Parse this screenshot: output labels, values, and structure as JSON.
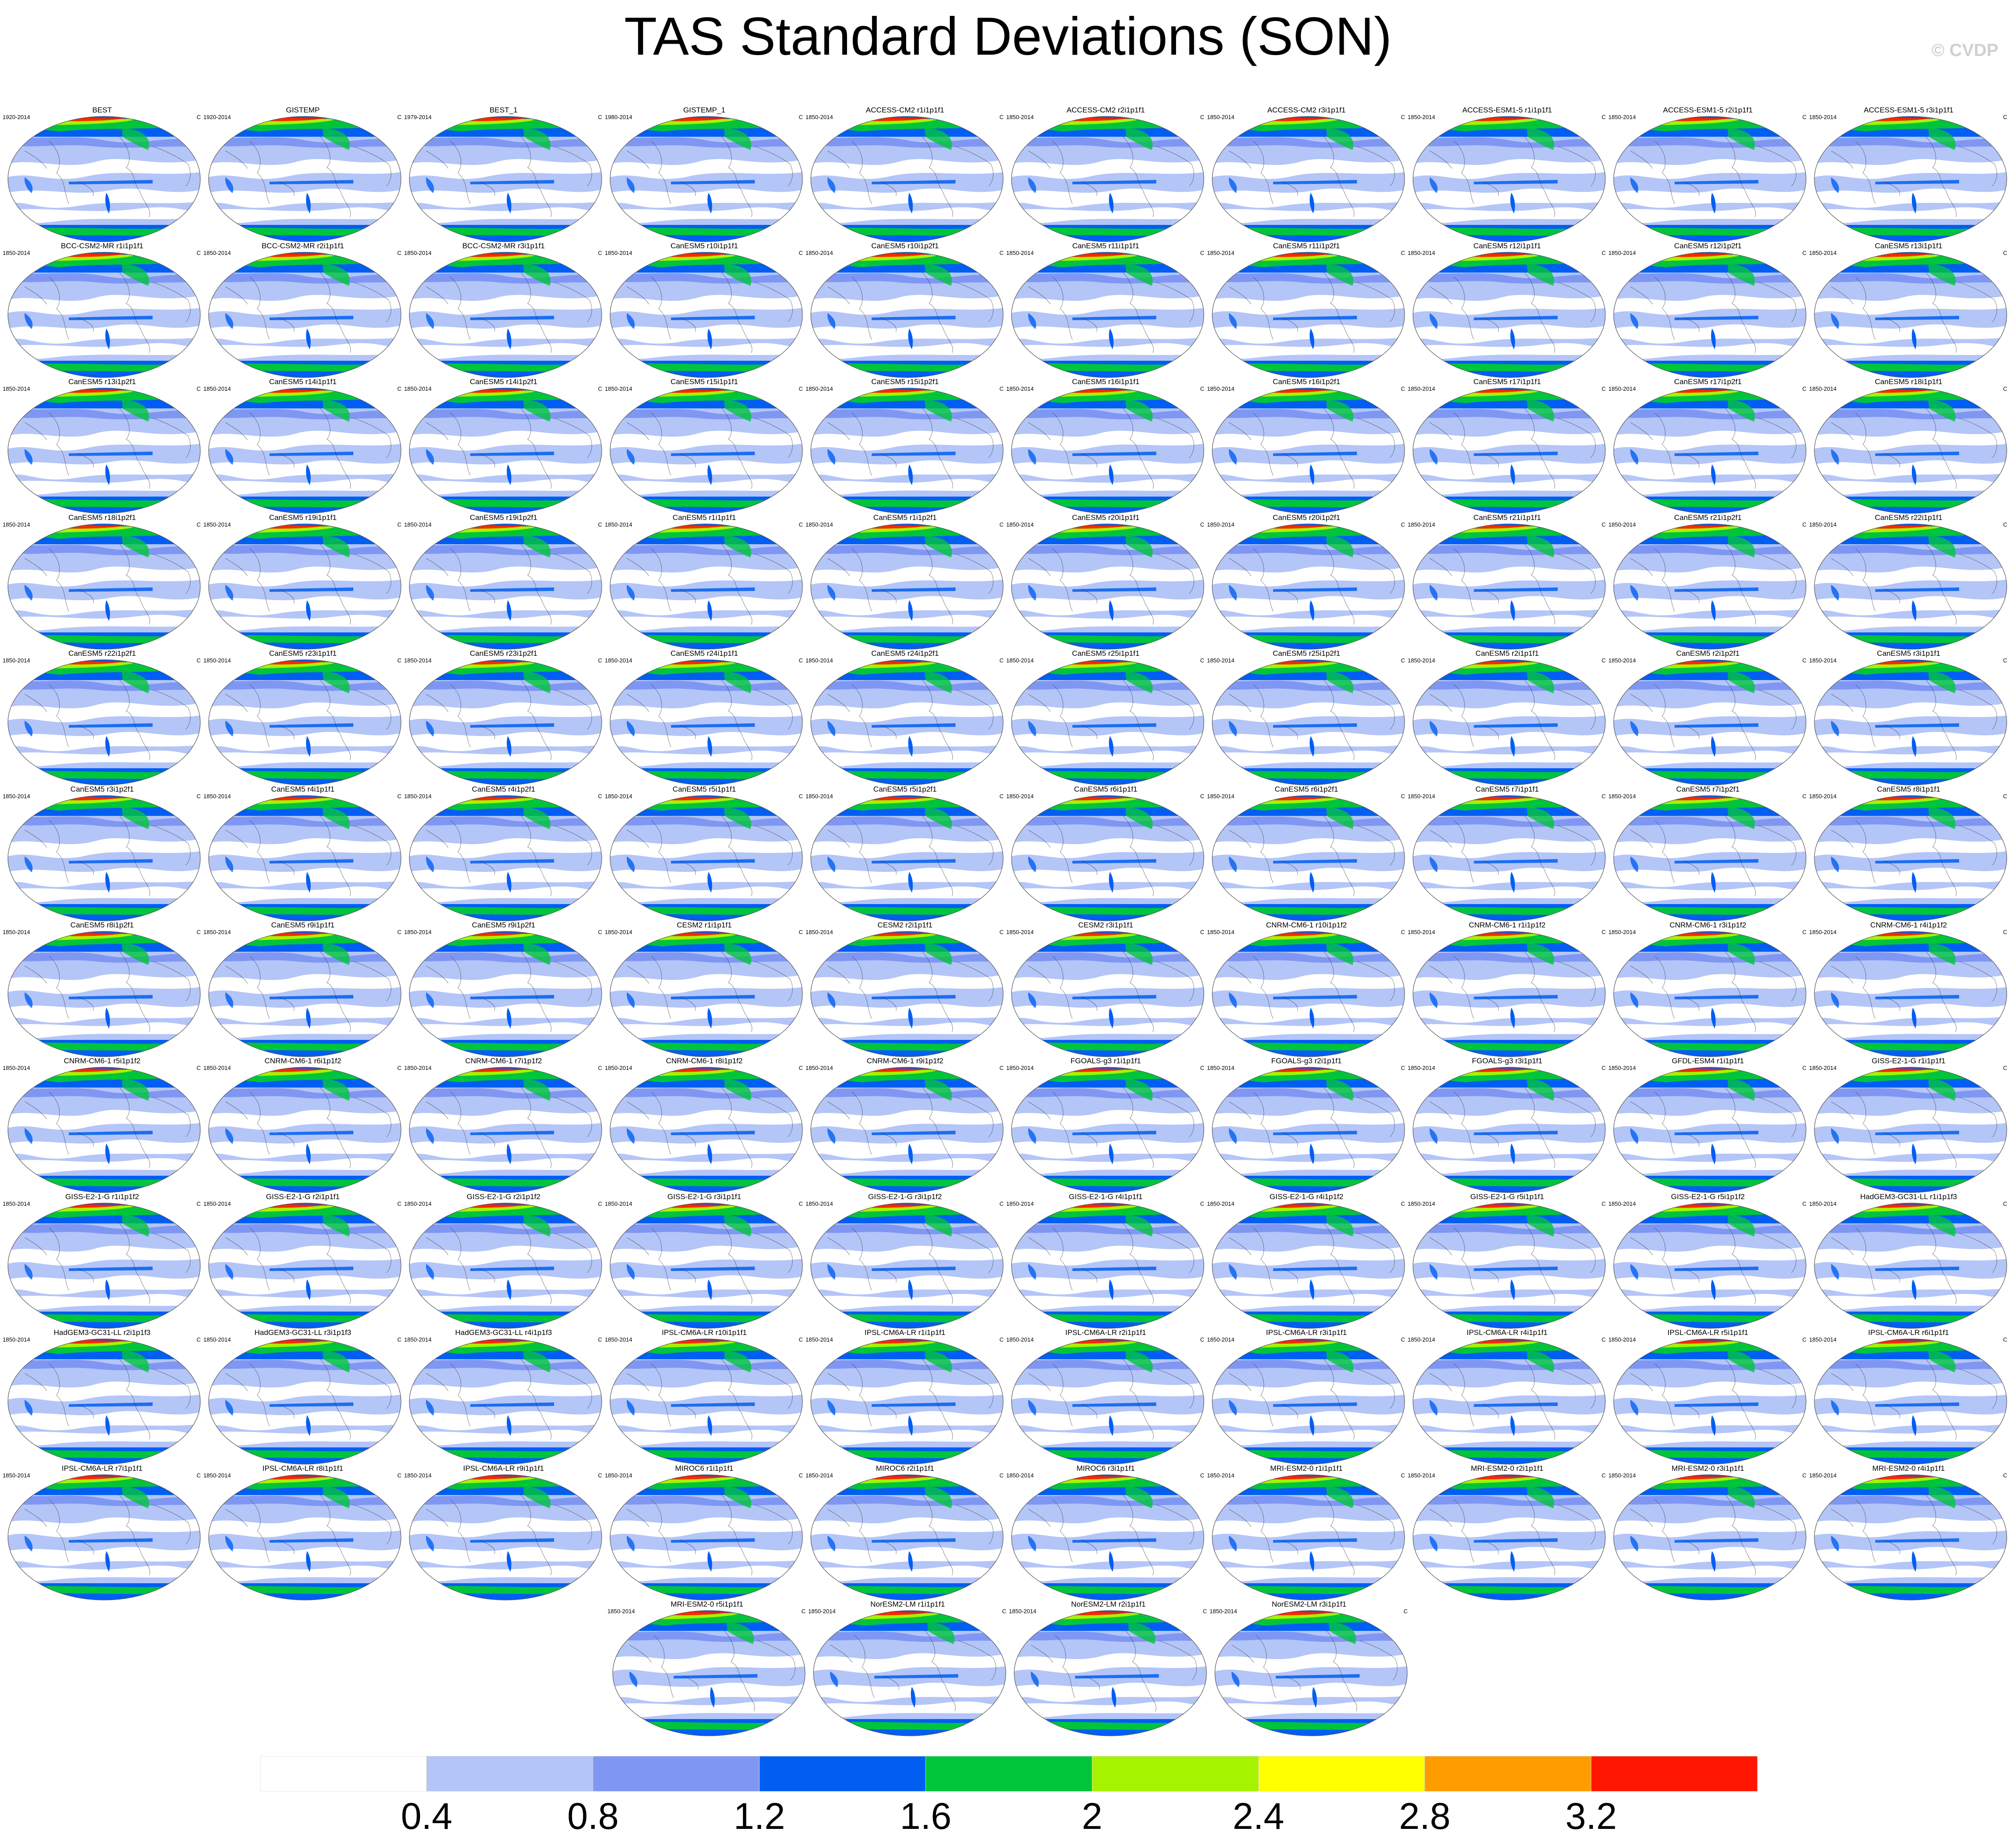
{
  "title": "TAS Standard Deviations (SON)",
  "watermark": "© CVDP",
  "unit_label": "C",
  "chart_data": {
    "type": "heatmap",
    "title": "TAS Standard Deviations (SON)",
    "note": "Grid of global surface air temperature standard-deviation maps, one per dataset/model member",
    "colorbar": {
      "levels": [
        0.4,
        0.8,
        1.2,
        1.6,
        2,
        2.4,
        2.8,
        3.2
      ],
      "tick_labels": [
        "0.4",
        "0.8",
        "1.2",
        "1.6",
        "2",
        "2.4",
        "2.8",
        "3.2"
      ],
      "colors": [
        "#ffffff",
        "#b4c5f7",
        "#7f97f3",
        "#005ef2",
        "#00c53b",
        "#a6f300",
        "#ffff00",
        "#ff9c00",
        "#ff1600"
      ]
    },
    "panels": [
      {
        "name": "BEST",
        "years": "1920-2014"
      },
      {
        "name": "GISTEMP",
        "years": "1920-2014"
      },
      {
        "name": "BEST_1",
        "years": "1979-2014"
      },
      {
        "name": "GISTEMP_1",
        "years": "1980-2014"
      },
      {
        "name": "ACCESS-CM2 r1i1p1f1",
        "years": "1850-2014"
      },
      {
        "name": "ACCESS-CM2 r2i1p1f1",
        "years": "1850-2014"
      },
      {
        "name": "ACCESS-CM2 r3i1p1f1",
        "years": "1850-2014"
      },
      {
        "name": "ACCESS-ESM1-5 r1i1p1f1",
        "years": "1850-2014"
      },
      {
        "name": "ACCESS-ESM1-5 r2i1p1f1",
        "years": "1850-2014"
      },
      {
        "name": "ACCESS-ESM1-5 r3i1p1f1",
        "years": "1850-2014"
      },
      {
        "name": "BCC-CSM2-MR r1i1p1f1",
        "years": "1850-2014"
      },
      {
        "name": "BCC-CSM2-MR r2i1p1f1",
        "years": "1850-2014"
      },
      {
        "name": "BCC-CSM2-MR r3i1p1f1",
        "years": "1850-2014"
      },
      {
        "name": "CanESM5 r10i1p1f1",
        "years": "1850-2014"
      },
      {
        "name": "CanESM5 r10i1p2f1",
        "years": "1850-2014"
      },
      {
        "name": "CanESM5 r11i1p1f1",
        "years": "1850-2014"
      },
      {
        "name": "CanESM5 r11i1p2f1",
        "years": "1850-2014"
      },
      {
        "name": "CanESM5 r12i1p1f1",
        "years": "1850-2014"
      },
      {
        "name": "CanESM5 r12i1p2f1",
        "years": "1850-2014"
      },
      {
        "name": "CanESM5 r13i1p1f1",
        "years": "1850-2014"
      },
      {
        "name": "CanESM5 r13i1p2f1",
        "years": "1850-2014"
      },
      {
        "name": "CanESM5 r14i1p1f1",
        "years": "1850-2014"
      },
      {
        "name": "CanESM5 r14i1p2f1",
        "years": "1850-2014"
      },
      {
        "name": "CanESM5 r15i1p1f1",
        "years": "1850-2014"
      },
      {
        "name": "CanESM5 r15i1p2f1",
        "years": "1850-2014"
      },
      {
        "name": "CanESM5 r16i1p1f1",
        "years": "1850-2014"
      },
      {
        "name": "CanESM5 r16i1p2f1",
        "years": "1850-2014"
      },
      {
        "name": "CanESM5 r17i1p1f1",
        "years": "1850-2014"
      },
      {
        "name": "CanESM5 r17i1p2f1",
        "years": "1850-2014"
      },
      {
        "name": "CanESM5 r18i1p1f1",
        "years": "1850-2014"
      },
      {
        "name": "CanESM5 r18i1p2f1",
        "years": "1850-2014"
      },
      {
        "name": "CanESM5 r19i1p1f1",
        "years": "1850-2014"
      },
      {
        "name": "CanESM5 r19i1p2f1",
        "years": "1850-2014"
      },
      {
        "name": "CanESM5 r1i1p1f1",
        "years": "1850-2014"
      },
      {
        "name": "CanESM5 r1i1p2f1",
        "years": "1850-2014"
      },
      {
        "name": "CanESM5 r20i1p1f1",
        "years": "1850-2014"
      },
      {
        "name": "CanESM5 r20i1p2f1",
        "years": "1850-2014"
      },
      {
        "name": "CanESM5 r21i1p1f1",
        "years": "1850-2014"
      },
      {
        "name": "CanESM5 r21i1p2f1",
        "years": "1850-2014"
      },
      {
        "name": "CanESM5 r22i1p1f1",
        "years": "1850-2014"
      },
      {
        "name": "CanESM5 r22i1p2f1",
        "years": "1850-2014"
      },
      {
        "name": "CanESM5 r23i1p1f1",
        "years": "1850-2014"
      },
      {
        "name": "CanESM5 r23i1p2f1",
        "years": "1850-2014"
      },
      {
        "name": "CanESM5 r24i1p1f1",
        "years": "1850-2014"
      },
      {
        "name": "CanESM5 r24i1p2f1",
        "years": "1850-2014"
      },
      {
        "name": "CanESM5 r25i1p1f1",
        "years": "1850-2014"
      },
      {
        "name": "CanESM5 r25i1p2f1",
        "years": "1850-2014"
      },
      {
        "name": "CanESM5 r2i1p1f1",
        "years": "1850-2014"
      },
      {
        "name": "CanESM5 r2i1p2f1",
        "years": "1850-2014"
      },
      {
        "name": "CanESM5 r3i1p1f1",
        "years": "1850-2014"
      },
      {
        "name": "CanESM5 r3i1p2f1",
        "years": "1850-2014"
      },
      {
        "name": "CanESM5 r4i1p1f1",
        "years": "1850-2014"
      },
      {
        "name": "CanESM5 r4i1p2f1",
        "years": "1850-2014"
      },
      {
        "name": "CanESM5 r5i1p1f1",
        "years": "1850-2014"
      },
      {
        "name": "CanESM5 r5i1p2f1",
        "years": "1850-2014"
      },
      {
        "name": "CanESM5 r6i1p1f1",
        "years": "1850-2014"
      },
      {
        "name": "CanESM5 r6i1p2f1",
        "years": "1850-2014"
      },
      {
        "name": "CanESM5 r7i1p1f1",
        "years": "1850-2014"
      },
      {
        "name": "CanESM5 r7i1p2f1",
        "years": "1850-2014"
      },
      {
        "name": "CanESM5 r8i1p1f1",
        "years": "1850-2014"
      },
      {
        "name": "CanESM5 r8i1p2f1",
        "years": "1850-2014"
      },
      {
        "name": "CanESM5 r9i1p1f1",
        "years": "1850-2014"
      },
      {
        "name": "CanESM5 r9i1p2f1",
        "years": "1850-2014"
      },
      {
        "name": "CESM2 r1i1p1f1",
        "years": "1850-2014"
      },
      {
        "name": "CESM2 r2i1p1f1",
        "years": "1850-2014"
      },
      {
        "name": "CESM2 r3i1p1f1",
        "years": "1850-2014"
      },
      {
        "name": "CNRM-CM6-1 r10i1p1f2",
        "years": "1850-2014"
      },
      {
        "name": "CNRM-CM6-1 r1i1p1f2",
        "years": "1850-2014"
      },
      {
        "name": "CNRM-CM6-1 r3i1p1f2",
        "years": "1850-2014"
      },
      {
        "name": "CNRM-CM6-1 r4i1p1f2",
        "years": "1850-2014"
      },
      {
        "name": "CNRM-CM6-1 r5i1p1f2",
        "years": "1850-2014"
      },
      {
        "name": "CNRM-CM6-1 r6i1p1f2",
        "years": "1850-2014"
      },
      {
        "name": "CNRM-CM6-1 r7i1p1f2",
        "years": "1850-2014"
      },
      {
        "name": "CNRM-CM6-1 r8i1p1f2",
        "years": "1850-2014"
      },
      {
        "name": "CNRM-CM6-1 r9i1p1f2",
        "years": "1850-2014"
      },
      {
        "name": "FGOALS-g3 r1i1p1f1",
        "years": "1850-2014"
      },
      {
        "name": "FGOALS-g3 r2i1p1f1",
        "years": "1850-2014"
      },
      {
        "name": "FGOALS-g3 r3i1p1f1",
        "years": "1850-2014"
      },
      {
        "name": "GFDL-ESM4 r1i1p1f1",
        "years": "1850-2014"
      },
      {
        "name": "GISS-E2-1-G r1i1p1f1",
        "years": "1850-2014"
      },
      {
        "name": "GISS-E2-1-G r1i1p1f2",
        "years": "1850-2014"
      },
      {
        "name": "GISS-E2-1-G r2i1p1f1",
        "years": "1850-2014"
      },
      {
        "name": "GISS-E2-1-G r2i1p1f2",
        "years": "1850-2014"
      },
      {
        "name": "GISS-E2-1-G r3i1p1f1",
        "years": "1850-2014"
      },
      {
        "name": "GISS-E2-1-G r3i1p1f2",
        "years": "1850-2014"
      },
      {
        "name": "GISS-E2-1-G r4i1p1f1",
        "years": "1850-2014"
      },
      {
        "name": "GISS-E2-1-G r4i1p1f2",
        "years": "1850-2014"
      },
      {
        "name": "GISS-E2-1-G r5i1p1f1",
        "years": "1850-2014"
      },
      {
        "name": "GISS-E2-1-G r5i1p1f2",
        "years": "1850-2014"
      },
      {
        "name": "HadGEM3-GC31-LL r1i1p1f3",
        "years": "1850-2014"
      },
      {
        "name": "HadGEM3-GC31-LL r2i1p1f3",
        "years": "1850-2014"
      },
      {
        "name": "HadGEM3-GC31-LL r3i1p1f3",
        "years": "1850-2014"
      },
      {
        "name": "HadGEM3-GC31-LL r4i1p1f3",
        "years": "1850-2014"
      },
      {
        "name": "IPSL-CM6A-LR r10i1p1f1",
        "years": "1850-2014"
      },
      {
        "name": "IPSL-CM6A-LR r1i1p1f1",
        "years": "1850-2014"
      },
      {
        "name": "IPSL-CM6A-LR r2i1p1f1",
        "years": "1850-2014"
      },
      {
        "name": "IPSL-CM6A-LR r3i1p1f1",
        "years": "1850-2014"
      },
      {
        "name": "IPSL-CM6A-LR r4i1p1f1",
        "years": "1850-2014"
      },
      {
        "name": "IPSL-CM6A-LR r5i1p1f1",
        "years": "1850-2014"
      },
      {
        "name": "IPSL-CM6A-LR r6i1p1f1",
        "years": "1850-2014"
      },
      {
        "name": "IPSL-CM6A-LR r7i1p1f1",
        "years": "1850-2014"
      },
      {
        "name": "IPSL-CM6A-LR r8i1p1f1",
        "years": "1850-2014"
      },
      {
        "name": "IPSL-CM6A-LR r9i1p1f1",
        "years": "1850-2014"
      },
      {
        "name": "MIROC6 r1i1p1f1",
        "years": "1850-2014"
      },
      {
        "name": "MIROC6 r2i1p1f1",
        "years": "1850-2014"
      },
      {
        "name": "MIROC6 r3i1p1f1",
        "years": "1850-2014"
      },
      {
        "name": "MRI-ESM2-0 r1i1p1f1",
        "years": "1850-2014"
      },
      {
        "name": "MRI-ESM2-0 r2i1p1f1",
        "years": "1850-2014"
      },
      {
        "name": "MRI-ESM2-0 r3i1p1f1",
        "years": "1850-2014"
      },
      {
        "name": "MRI-ESM2-0 r4i1p1f1",
        "years": "1850-2014"
      },
      {
        "name": "MRI-ESM2-0 r5i1p1f1",
        "years": "1850-2014"
      },
      {
        "name": "NorESM2-LM r1i1p1f1",
        "years": "1850-2014"
      },
      {
        "name": "NorESM2-LM r2i1p1f1",
        "years": "1850-2014"
      },
      {
        "name": "NorESM2-LM r3i1p1f1",
        "years": "1850-2014"
      }
    ]
  }
}
